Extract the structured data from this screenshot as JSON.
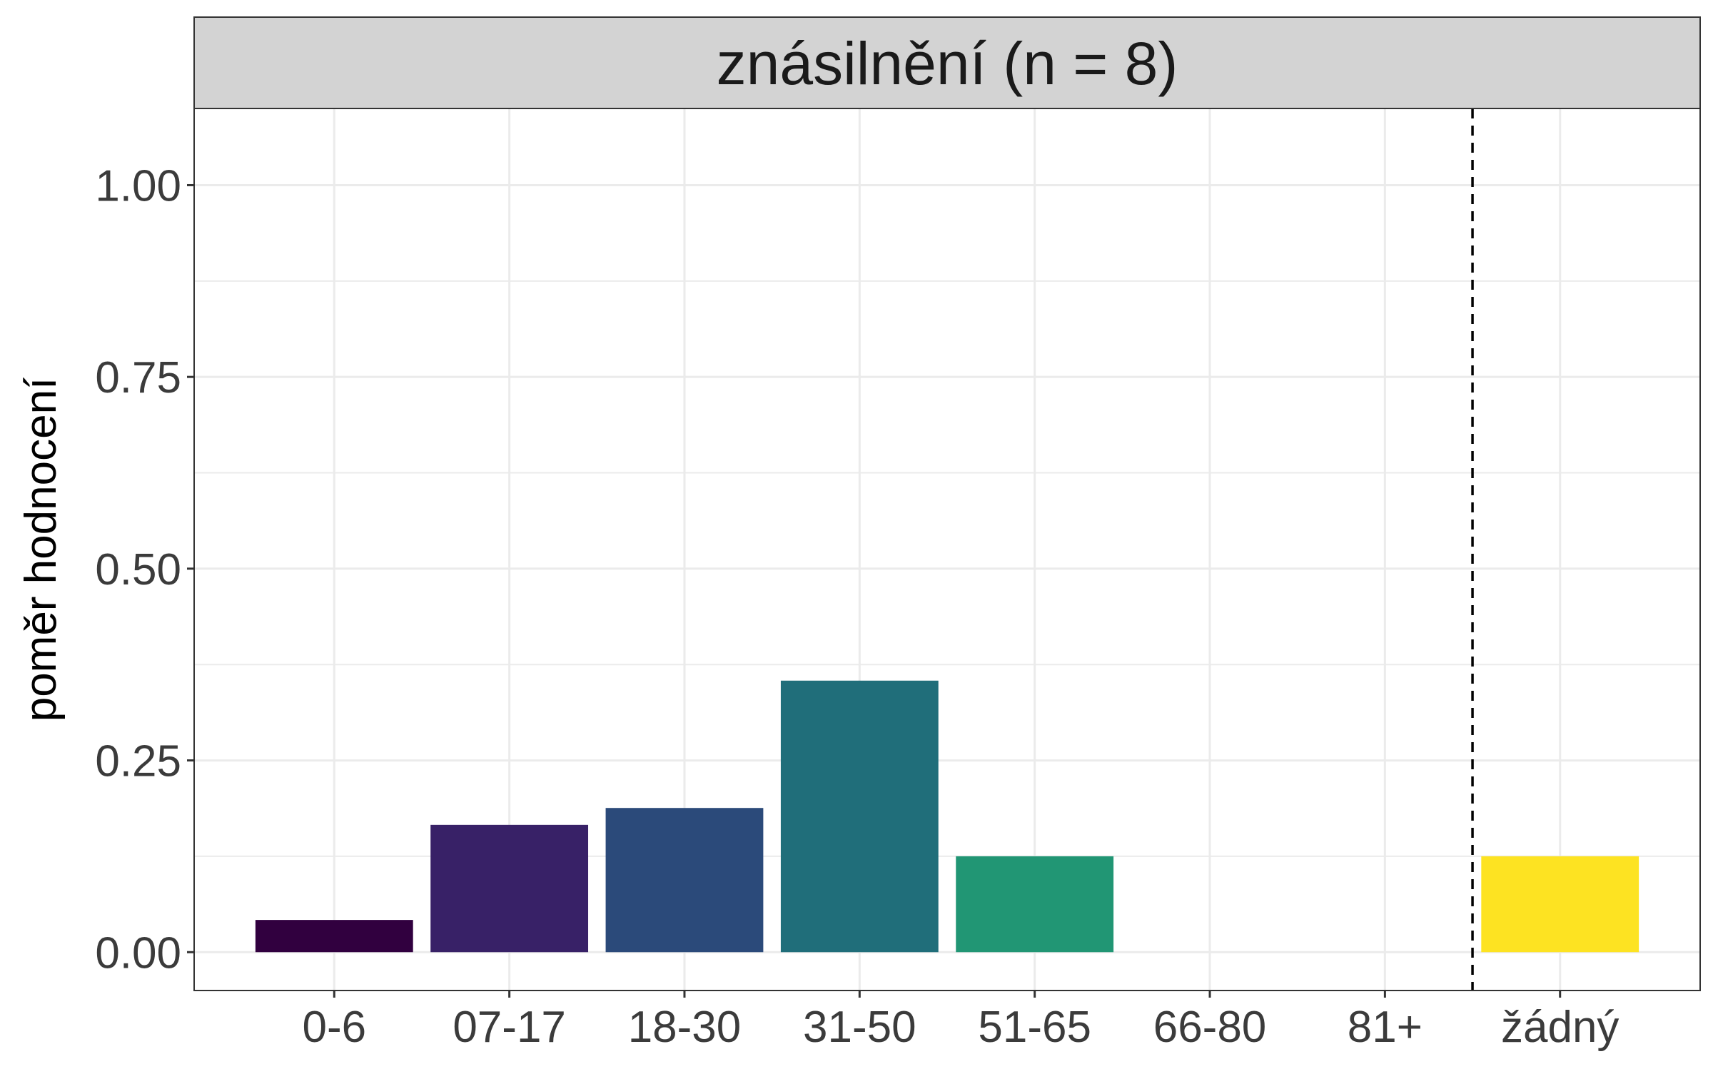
{
  "chart_data": {
    "type": "bar",
    "title": "znásilnění (n = 8)",
    "xlabel": "",
    "ylabel": "poměr hodnocení",
    "categories": [
      "0-6",
      "07-17",
      "18-30",
      "31-50",
      "51-65",
      "66-80",
      "81+",
      "žádný"
    ],
    "values": [
      0.042,
      0.166,
      0.188,
      0.354,
      0.125,
      0.0,
      0.0,
      0.125
    ],
    "colors": [
      "#31003F",
      "#382167",
      "#2B4A7A",
      "#206E7A",
      "#219674",
      "#3DB85F",
      "#9FD63A",
      "#FDE322"
    ],
    "ylim": [
      -0.05,
      1.1
    ],
    "yticks": [
      0.0,
      0.25,
      0.5,
      0.75,
      1.0
    ],
    "ytick_labels": [
      "0.00",
      "0.25",
      "0.50",
      "0.75",
      "1.00"
    ],
    "grid": true,
    "separator_after_category": "81+",
    "strip_color": "#D3D3D3",
    "grid_color": "#EBEBEB",
    "tick_label_color": "#3B3B3B"
  }
}
